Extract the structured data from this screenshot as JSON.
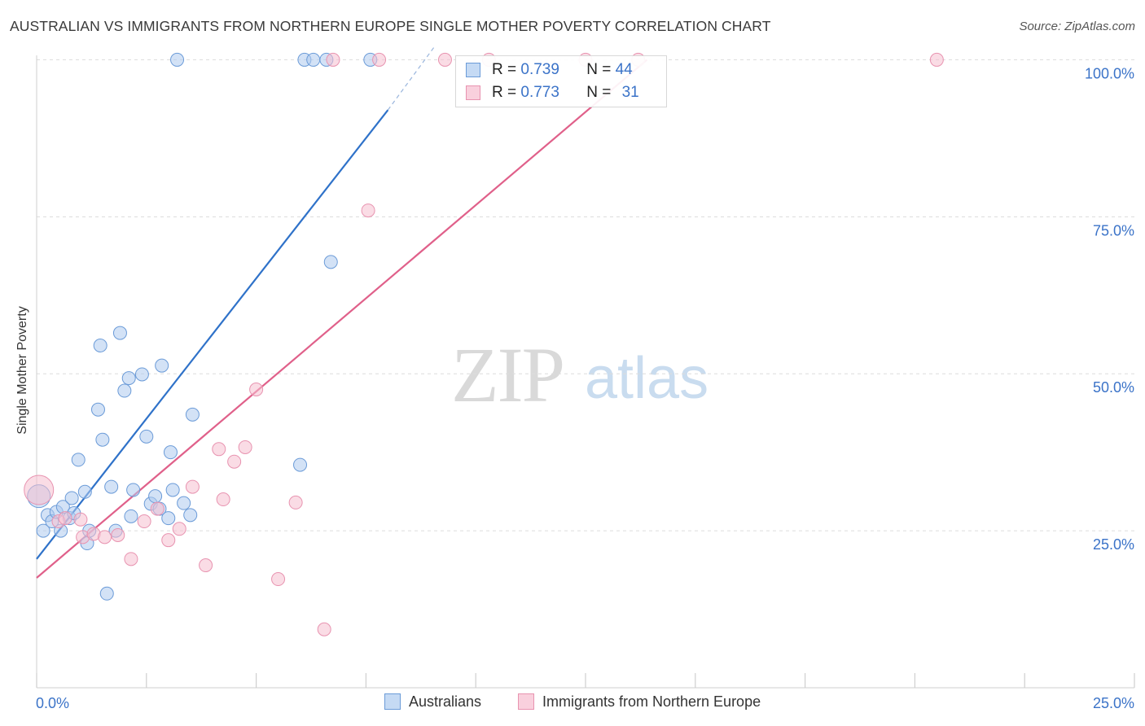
{
  "title": "AUSTRALIAN VS IMMIGRANTS FROM NORTHERN EUROPE SINGLE MOTHER POVERTY CORRELATION CHART",
  "source": "Source: ZipAtlas.com",
  "watermark": {
    "zip": "ZIP",
    "atlas": "atlas"
  },
  "legend": {
    "r_label": "R =",
    "n_label": "N =",
    "rows": [
      {
        "r": "0.739",
        "n": "44"
      },
      {
        "r": "0.773",
        "n": "31"
      }
    ]
  },
  "colors": {
    "australians_fill": "#aecbef",
    "australians_stroke": "#6b9bd8",
    "australians_line": "#2f72c9",
    "immigrants_fill": "#f6bfd0",
    "immigrants_stroke": "#e893b0",
    "immigrants_line": "#e0608a",
    "grid": "#dcdcdc",
    "tick_label": "#3b73c8"
  },
  "chart_data": {
    "type": "scatter",
    "title": "AUSTRALIAN VS IMMIGRANTS FROM NORTHERN EUROPE SINGLE MOTHER POVERTY CORRELATION CHART",
    "xlabel": "",
    "ylabel": "Single Mother Poverty",
    "xlim": [
      0,
      25
    ],
    "ylim": [
      0,
      102
    ],
    "x_tick_labels": [
      "0.0%",
      "25.0%"
    ],
    "y_ticks": [
      25,
      50,
      75,
      100
    ],
    "y_tick_labels": [
      "25.0%",
      "50.0%",
      "75.0%",
      "100.0%"
    ],
    "legend_position": "bottom",
    "series": [
      {
        "name": "Australians",
        "r": 0.739,
        "n": 44,
        "points": [
          [
            0.05,
            30.5
          ],
          [
            0.15,
            25.0
          ],
          [
            0.25,
            27.5
          ],
          [
            0.35,
            26.5
          ],
          [
            0.45,
            28.0
          ],
          [
            0.55,
            25.0
          ],
          [
            0.6,
            28.8
          ],
          [
            0.75,
            27.0
          ],
          [
            0.85,
            27.8
          ],
          [
            0.8,
            30.2
          ],
          [
            0.95,
            36.3
          ],
          [
            1.1,
            31.2
          ],
          [
            1.15,
            23.0
          ],
          [
            1.2,
            25.0
          ],
          [
            1.4,
            44.3
          ],
          [
            1.45,
            54.5
          ],
          [
            1.5,
            39.5
          ],
          [
            1.6,
            15.0
          ],
          [
            1.7,
            32.0
          ],
          [
            1.8,
            25.0
          ],
          [
            1.9,
            56.5
          ],
          [
            2.0,
            47.3
          ],
          [
            2.1,
            49.3
          ],
          [
            2.15,
            27.3
          ],
          [
            2.2,
            31.5
          ],
          [
            2.4,
            49.9
          ],
          [
            2.5,
            40.0
          ],
          [
            2.6,
            29.3
          ],
          [
            2.7,
            30.5
          ],
          [
            2.8,
            28.5
          ],
          [
            2.85,
            51.3
          ],
          [
            3.0,
            27.0
          ],
          [
            3.05,
            37.5
          ],
          [
            3.1,
            31.5
          ],
          [
            3.2,
            100.0
          ],
          [
            3.35,
            29.4
          ],
          [
            3.5,
            27.5
          ],
          [
            3.55,
            43.5
          ],
          [
            6.0,
            35.5
          ],
          [
            6.1,
            100.0
          ],
          [
            6.3,
            100.0
          ],
          [
            6.6,
            100.0
          ],
          [
            6.7,
            67.8
          ],
          [
            7.6,
            100.0
          ]
        ]
      },
      {
        "name": "Immigrants from Northern Europe",
        "r": 0.773,
        "n": 31,
        "points": [
          [
            0.05,
            31.5
          ],
          [
            0.5,
            26.5
          ],
          [
            0.65,
            27.0
          ],
          [
            1.0,
            26.8
          ],
          [
            1.05,
            24.0
          ],
          [
            1.3,
            24.5
          ],
          [
            1.55,
            24.0
          ],
          [
            1.85,
            24.3
          ],
          [
            2.15,
            20.5
          ],
          [
            2.45,
            26.5
          ],
          [
            2.75,
            28.5
          ],
          [
            3.0,
            23.5
          ],
          [
            3.25,
            25.3
          ],
          [
            3.55,
            32.0
          ],
          [
            3.85,
            19.5
          ],
          [
            4.15,
            38.0
          ],
          [
            4.25,
            30.0
          ],
          [
            4.5,
            36.0
          ],
          [
            4.75,
            38.3
          ],
          [
            5.0,
            47.5
          ],
          [
            5.5,
            17.3
          ],
          [
            5.9,
            29.5
          ],
          [
            6.55,
            9.3
          ],
          [
            6.75,
            100.0
          ],
          [
            7.55,
            76.0
          ],
          [
            7.8,
            100.0
          ],
          [
            9.3,
            100.0
          ],
          [
            10.3,
            100.0
          ],
          [
            12.5,
            100.0
          ],
          [
            13.7,
            100.0
          ],
          [
            20.5,
            100.0
          ]
        ]
      }
    ],
    "trend_lines": [
      {
        "series": "Australians",
        "from": [
          0,
          20.5
        ],
        "to": [
          8.0,
          92.0
        ],
        "dashed_to": [
          9.05,
          102.0
        ]
      },
      {
        "series": "Immigrants from Northern Europe",
        "from": [
          0,
          17.5
        ],
        "to": [
          13.9,
          100.0
        ]
      }
    ]
  }
}
